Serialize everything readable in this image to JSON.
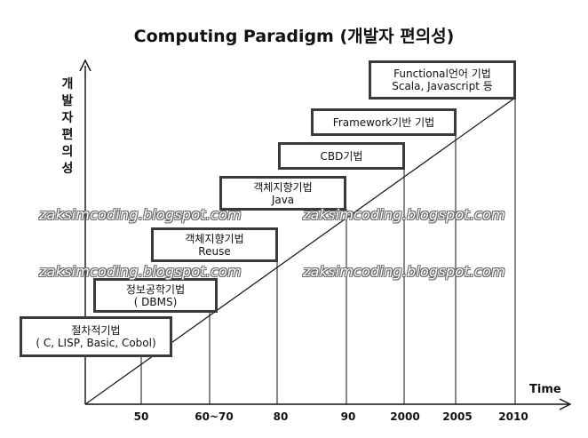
{
  "title": "Computing Paradigm (개발자 편의성)",
  "y_axis_label": "개발자편의성",
  "x_axis_label": "Time",
  "x_ticks": [
    "50",
    "60~70",
    "80",
    "90",
    "2000",
    "2005",
    "2010"
  ],
  "stages": [
    {
      "line1": "절차적기법",
      "line2": "( C, LISP, Basic, Cobol)"
    },
    {
      "line1": "정보공학기법",
      "line2": "( DBMS)"
    },
    {
      "line1": "객체지향기법",
      "line2": "Reuse"
    },
    {
      "line1": "객체지향기법",
      "line2": "Java"
    },
    {
      "line1": "CBD기법",
      "line2": ""
    },
    {
      "line1": "Framework기반 기법",
      "line2": ""
    },
    {
      "line1": "Functional언어 기법",
      "line2": "Scala, Javascript  등"
    }
  ],
  "watermark": "zaksimcoding.blogspot.com"
}
